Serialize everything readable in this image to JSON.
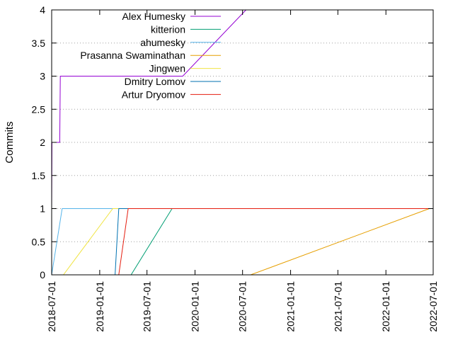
{
  "chart_data": {
    "type": "line",
    "title": "",
    "xlabel": "",
    "ylabel": "Commits",
    "x_type": "date",
    "xlim": [
      "2018-07-01",
      "2022-07-01"
    ],
    "ylim": [
      0,
      4
    ],
    "x_ticks": [
      "2018-07-01",
      "2019-01-01",
      "2019-07-01",
      "2020-01-01",
      "2020-07-01",
      "2021-01-01",
      "2021-07-01",
      "2022-01-01",
      "2022-07-01"
    ],
    "y_ticks": [
      "0",
      "0.5",
      "1",
      "1.5",
      "2",
      "2.5",
      "3",
      "3.5",
      "4"
    ],
    "grid": "horizontal dotted",
    "legend_position": "top-left",
    "series": [
      {
        "name": "Alex Humesky",
        "color": "#9400d3",
        "points": [
          [
            "2018-07-01",
            1
          ],
          [
            "2018-07-02",
            2
          ],
          [
            "2018-08-01",
            2
          ],
          [
            "2018-08-03",
            3
          ],
          [
            "2019-11-15",
            3
          ],
          [
            "2020-07-14",
            4
          ]
        ]
      },
      {
        "name": "kitterion",
        "color": "#009e73",
        "points": [
          [
            "2019-05-01",
            0
          ],
          [
            "2019-10-05",
            1
          ],
          [
            "2022-06-16",
            1
          ]
        ]
      },
      {
        "name": "ahumesky",
        "color": "#56b4e9",
        "points": [
          [
            "2018-07-01",
            0
          ],
          [
            "2018-08-10",
            1
          ],
          [
            "2022-06-16",
            1
          ]
        ]
      },
      {
        "name": "Prasanna Swaminathan",
        "color": "#e69f00",
        "points": [
          [
            "2020-08-01",
            0
          ],
          [
            "2022-06-16",
            1
          ]
        ]
      },
      {
        "name": "Jingwen",
        "color": "#f0e442",
        "points": [
          [
            "2018-08-15",
            0
          ],
          [
            "2019-02-20",
            1
          ],
          [
            "2022-06-16",
            1
          ]
        ]
      },
      {
        "name": "Dmitry Lomov",
        "color": "#0072b2",
        "points": [
          [
            "2019-03-01",
            0
          ],
          [
            "2019-03-15",
            1
          ],
          [
            "2022-06-16",
            1
          ]
        ]
      },
      {
        "name": "Artur Dryomov",
        "color": "#e51e10",
        "points": [
          [
            "2019-03-15",
            0
          ],
          [
            "2019-04-20",
            1
          ],
          [
            "2022-06-16",
            1
          ]
        ]
      }
    ]
  }
}
